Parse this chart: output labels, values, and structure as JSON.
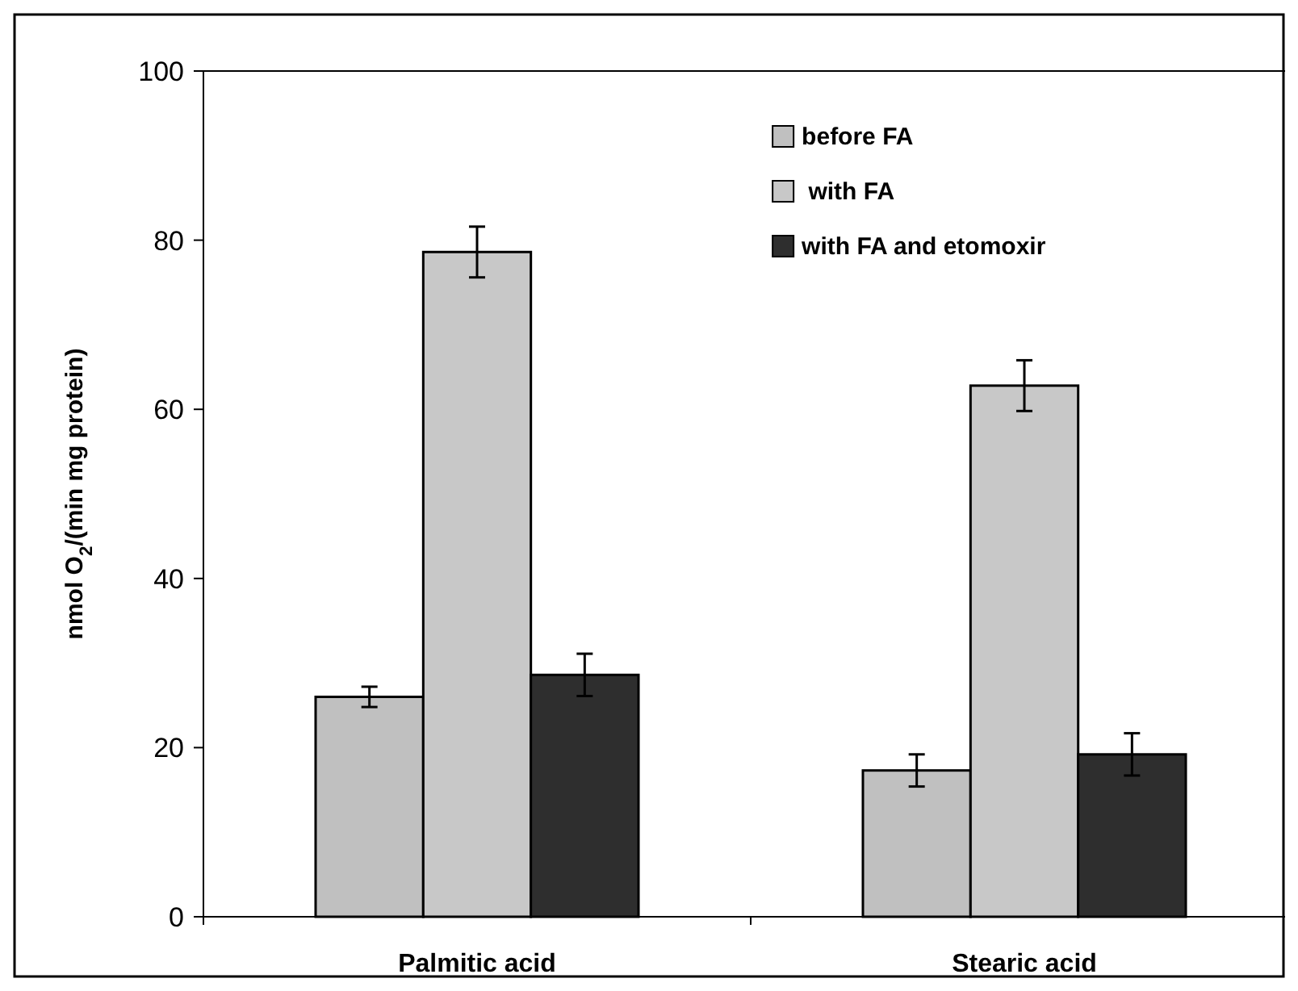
{
  "chart_data": {
    "type": "bar",
    "categories": [
      "Palmitic acid",
      "Stearic acid"
    ],
    "ylabel": "nmol O$_{2}$/(min mg protein)",
    "ylim": [
      0,
      100
    ],
    "yticks": [
      0,
      20,
      40,
      60,
      80,
      100
    ],
    "grid": false,
    "legend": "top right",
    "series": [
      {
        "name": "before FA",
        "color": "#c0c0c0",
        "values": [
          26,
          17.3
        ],
        "errors": [
          1.2,
          1.9
        ]
      },
      {
        "name": " with FA",
        "color": "#c8c8c8",
        "values": [
          78.6,
          62.8
        ],
        "errors": [
          3,
          3
        ]
      },
      {
        "name": "with FA and etomoxir",
        "color": "#2e2e2e",
        "values": [
          28.6,
          19.2
        ],
        "errors": [
          2.5,
          2.5
        ]
      }
    ]
  }
}
